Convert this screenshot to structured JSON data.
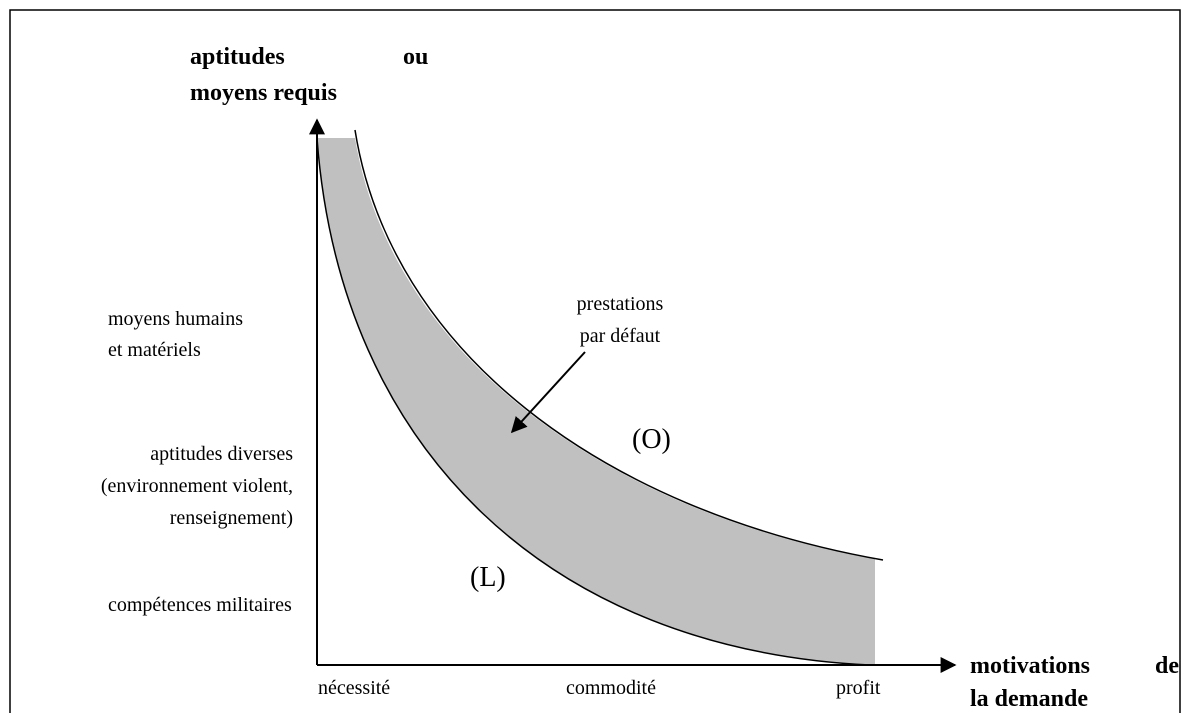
{
  "y_axis": {
    "title": {
      "line1_left": "aptitudes",
      "line1_right": "ou",
      "line2": "moyens requis"
    },
    "levels": [
      {
        "lines": [
          "moyens humains",
          "et matériels"
        ]
      },
      {
        "lines": [
          "aptitudes diverses",
          "(environnement violent,",
          "renseignement)"
        ]
      },
      {
        "lines": [
          "compétences militaires"
        ]
      }
    ]
  },
  "x_axis": {
    "title": {
      "line1_left": "motivations",
      "line1_right": "de",
      "line2": "la demande"
    },
    "levels": [
      "nécessité",
      "commodité",
      "profit"
    ]
  },
  "band_label": [
    "prestations",
    "par défaut"
  ],
  "curves": {
    "upper": "(O)",
    "lower": "(L)"
  }
}
